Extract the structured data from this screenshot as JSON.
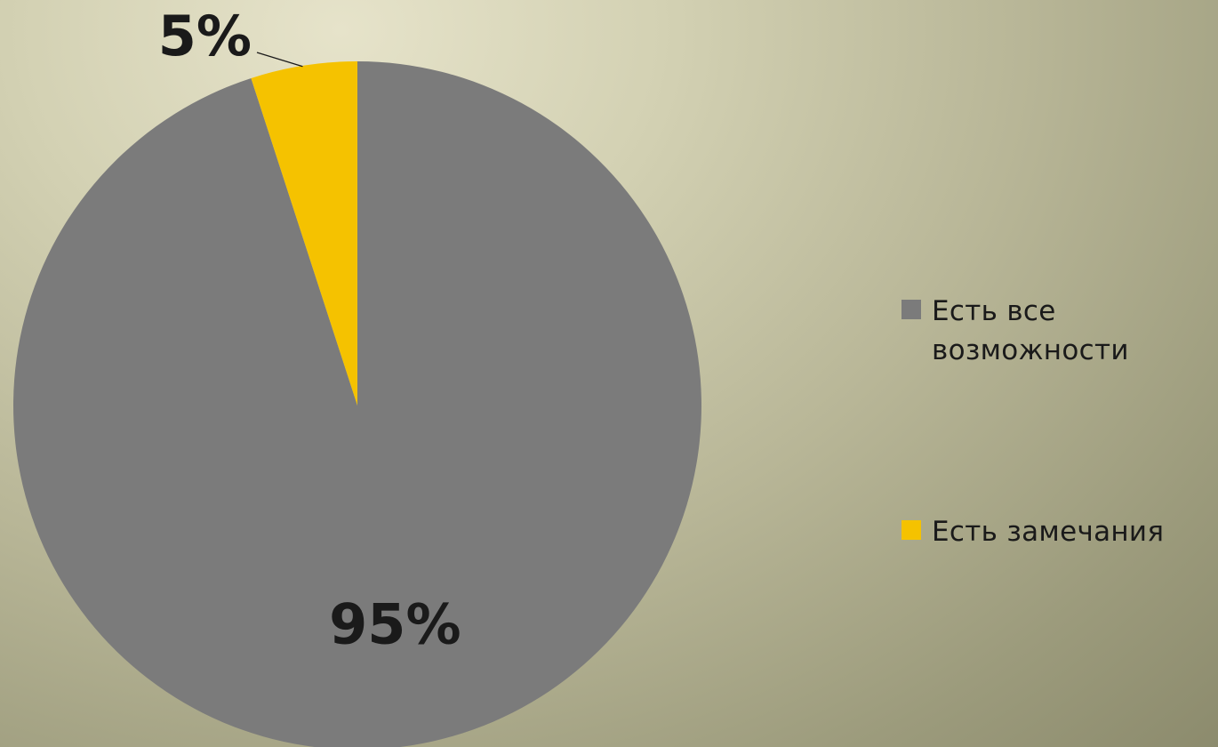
{
  "chart_data": {
    "type": "pie",
    "slices": [
      {
        "label": "Есть все возможности",
        "value": 95,
        "value_label": "95%",
        "color": "#7b7b7b"
      },
      {
        "label": "Есть замечания",
        "value": 5,
        "value_label": "5%",
        "color": "#f5c200"
      }
    ],
    "start_angle_deg": 0,
    "direction": "clockwise",
    "legend_position": "right"
  },
  "legend": {
    "items": [
      {
        "label": "Есть все возможности",
        "color": "#7b7b7b"
      },
      {
        "label": "Есть замечания",
        "color": "#f5c200"
      }
    ]
  },
  "colors": {
    "text": "#1a1a1a",
    "leader_line": "#1a1a1a"
  }
}
